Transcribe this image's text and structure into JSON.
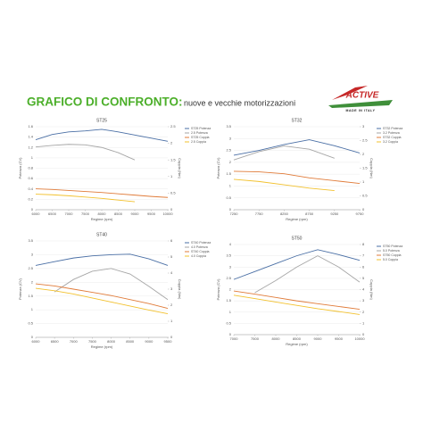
{
  "header": {
    "title": "GRAFICO DI CONFRONTO:",
    "subtitle": "nuove e vecchie motorizzazioni",
    "logo": "ACTIVE",
    "logo_tagline": "MADE IN ITALY"
  },
  "chart_data": [
    {
      "type": "line",
      "title": "ST25",
      "x_label": "Regime (rpm)",
      "y_label": "Potenza (CV)",
      "y2_label": "Coppia (Nm)",
      "x": [
        6000,
        6500,
        7000,
        7500,
        8000,
        8500,
        9000,
        9500,
        10000
      ],
      "xlim": [
        6000,
        10000
      ],
      "xticks": [
        6000,
        6500,
        7000,
        7500,
        8000,
        8500,
        9000,
        9500,
        10000
      ],
      "ylim": [
        0,
        1.6
      ],
      "yticks": [
        0,
        0.2,
        0.4,
        0.6,
        0.8,
        1,
        1.2,
        1.4,
        1.6
      ],
      "y2lim": [
        0,
        2.5
      ],
      "y2ticks": [
        0,
        0.5,
        1,
        1.5,
        2,
        2.5
      ],
      "grid": true,
      "series": [
        {
          "name": "ST25 Potenza",
          "color": "#4a6fa5",
          "values": [
            1.35,
            1.45,
            1.5,
            1.52,
            1.55,
            1.5,
            1.44,
            1.38,
            1.32
          ]
        },
        {
          "name": "2.5 Potenza",
          "color": "#a6a6a6",
          "values": [
            1.21,
            1.24,
            1.26,
            1.25,
            1.2,
            1.1,
            0.96,
            null,
            null
          ]
        },
        {
          "name": "ST25 Coppia",
          "color": "#e07b39",
          "axis": "y2",
          "values": [
            0.63,
            0.61,
            0.58,
            0.55,
            0.52,
            0.48,
            0.44,
            0.4,
            0.37
          ]
        },
        {
          "name": "2.5 Coppia",
          "color": "#f2c12e",
          "axis": "y2",
          "values": [
            0.47,
            0.45,
            0.42,
            0.38,
            0.34,
            0.29,
            0.24,
            null,
            null
          ]
        }
      ]
    },
    {
      "type": "line",
      "title": "ST32",
      "x_label": "Regime (rpm)",
      "y_label": "Potenza (CV)",
      "y2_label": "Coppia (Nm)",
      "x": [
        7250,
        7750,
        8250,
        8750,
        9250,
        9750
      ],
      "xlim": [
        7250,
        9750
      ],
      "xticks": [
        7250,
        7750,
        8250,
        8750,
        9250,
        9750
      ],
      "ylim": [
        0,
        3.5
      ],
      "yticks": [
        0,
        0.5,
        1,
        1.5,
        2,
        2.5,
        3,
        3.5
      ],
      "y2lim": [
        0,
        3
      ],
      "y2ticks": [
        0,
        0.5,
        1,
        1.5,
        2,
        2.5,
        3
      ],
      "grid": true,
      "series": [
        {
          "name": "ST32 Potenza",
          "color": "#4a6fa5",
          "values": [
            2.3,
            2.5,
            2.75,
            2.95,
            2.7,
            2.39
          ]
        },
        {
          "name": "3.2 Potenza",
          "color": "#a6a6a6",
          "values": [
            2.1,
            2.45,
            2.69,
            2.55,
            2.17,
            null
          ]
        },
        {
          "name": "ST32 Coppia",
          "color": "#e07b39",
          "axis": "y2",
          "values": [
            1.39,
            1.37,
            1.3,
            1.15,
            1.05,
            0.95
          ]
        },
        {
          "name": "3.2 Coppia",
          "color": "#f2c12e",
          "axis": "y2",
          "values": [
            1.1,
            1.02,
            0.9,
            0.78,
            0.69,
            null
          ]
        }
      ]
    },
    {
      "type": "line",
      "title": "ST40",
      "x_label": "Regime (rpm)",
      "y_label": "Potenza (CV)",
      "y2_label": "Coppia (Nm)",
      "x": [
        6000,
        6500,
        7000,
        7500,
        8000,
        8500,
        9000,
        9500
      ],
      "xlim": [
        6000,
        9500
      ],
      "xticks": [
        6000,
        6500,
        7000,
        7500,
        8000,
        8500,
        9000,
        9500
      ],
      "ylim": [
        0,
        3.5
      ],
      "yticks": [
        0,
        0.5,
        1,
        1.5,
        2,
        2.5,
        3,
        3.5
      ],
      "y2lim": [
        0,
        6
      ],
      "y2ticks": [
        0,
        1,
        2,
        3,
        4,
        5,
        6
      ],
      "grid": true,
      "series": [
        {
          "name": "ST40 Potenza",
          "color": "#4a6fa5",
          "values": [
            2.61,
            2.75,
            2.88,
            2.96,
            3.0,
            3.02,
            2.85,
            2.61
          ]
        },
        {
          "name": "4.0 Potenza",
          "color": "#a6a6a6",
          "values": [
            null,
            1.65,
            2.1,
            2.4,
            2.5,
            2.3,
            1.85,
            1.37
          ]
        },
        {
          "name": "ST40 Coppia",
          "color": "#e07b39",
          "axis": "y2",
          "values": [
            3.33,
            3.2,
            3.0,
            2.8,
            2.6,
            2.35,
            2.1,
            1.8
          ]
        },
        {
          "name": "4.0 Coppia",
          "color": "#f2c12e",
          "axis": "y2",
          "values": [
            3.05,
            2.9,
            2.7,
            2.45,
            2.2,
            1.95,
            1.7,
            1.47
          ]
        }
      ]
    },
    {
      "type": "line",
      "title": "ST50",
      "x_label": "Regime (rpm)",
      "y_label": "Potenza (CV)",
      "y2_label": "Coppia (Nm)",
      "x": [
        7000,
        7500,
        8000,
        8500,
        9000,
        9500,
        10000
      ],
      "xlim": [
        7000,
        10000
      ],
      "xticks": [
        7000,
        7500,
        8000,
        8500,
        9000,
        9500,
        10000
      ],
      "ylim": [
        0,
        4
      ],
      "yticks": [
        0,
        0.5,
        1,
        1.5,
        2,
        2.5,
        3,
        3.5,
        4
      ],
      "y2lim": [
        0,
        8
      ],
      "y2ticks": [
        0,
        1,
        2,
        3,
        4,
        5,
        6,
        7,
        8
      ],
      "grid": true,
      "series": [
        {
          "name": "ST50 Potenza",
          "color": "#4a6fa5",
          "values": [
            2.45,
            2.8,
            3.15,
            3.5,
            3.77,
            3.55,
            3.3
          ]
        },
        {
          "name": "5.0 Potenza",
          "color": "#a6a6a6",
          "values": [
            null,
            1.86,
            2.4,
            3.0,
            3.5,
            3.0,
            2.33
          ]
        },
        {
          "name": "ST50 Coppia",
          "color": "#e07b39",
          "axis": "y2",
          "values": [
            3.88,
            3.6,
            3.3,
            3.0,
            2.75,
            2.5,
            2.25
          ]
        },
        {
          "name": "5.0 Coppia",
          "color": "#f2c12e",
          "axis": "y2",
          "values": [
            3.5,
            3.2,
            2.9,
            2.6,
            2.3,
            2.05,
            1.79
          ]
        }
      ]
    }
  ]
}
